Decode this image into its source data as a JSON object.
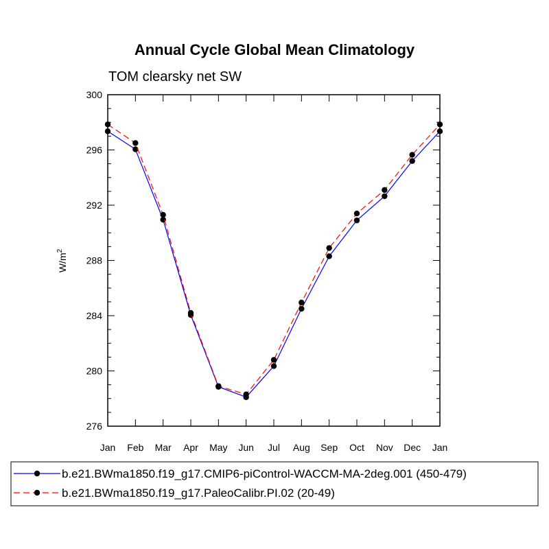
{
  "chart_data": {
    "type": "line",
    "title": "Annual Cycle Global Mean Climatology",
    "subtitle": "TOM clearsky net SW",
    "ylabel_base": "W/m",
    "ylabel_sup": "2",
    "categories": [
      "Jan",
      "Feb",
      "Mar",
      "Apr",
      "May",
      "Jun",
      "Jul",
      "Aug",
      "Sep",
      "Oct",
      "Nov",
      "Dec",
      "Jan"
    ],
    "ylim": [
      276,
      300
    ],
    "yticks": [
      276,
      280,
      284,
      288,
      292,
      296,
      300
    ],
    "ytick_labels": [
      "276",
      "280",
      "284",
      "288",
      "292",
      "296",
      "300"
    ],
    "series": [
      {
        "name": "b.e21.BWma1850.f19_g17.CMIP6-piControl-WACCM-MA-2deg.001 (450-479)",
        "color": "#0000ff",
        "dash": "solid",
        "values": [
          297.35,
          296.05,
          290.95,
          284.05,
          278.85,
          278.1,
          280.35,
          284.5,
          288.3,
          290.9,
          292.65,
          295.2,
          297.35
        ]
      },
      {
        "name": "b.e21.BWma1850.f19_g17.PaleoCalibr.PI.02 (20-49)",
        "color": "#ff0000",
        "dash": "dashed",
        "values": [
          297.85,
          296.5,
          291.3,
          284.2,
          278.9,
          278.3,
          280.8,
          284.95,
          288.9,
          291.4,
          293.1,
          295.65,
          297.85
        ]
      }
    ]
  }
}
